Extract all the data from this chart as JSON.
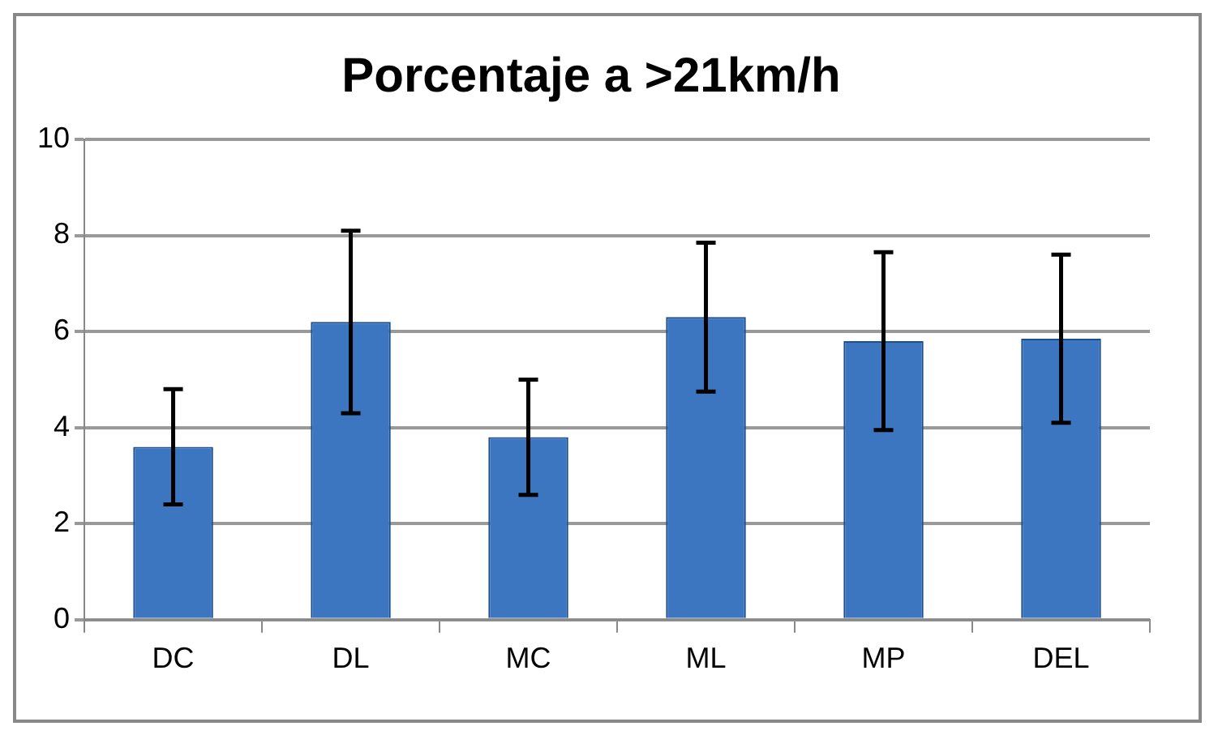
{
  "chart_data": {
    "type": "bar",
    "title": "Porcentaje a >21km/h",
    "categories": [
      "DC",
      "DL",
      "MC",
      "ML",
      "MP",
      "DEL"
    ],
    "values": [
      3.6,
      6.2,
      3.8,
      6.3,
      5.8,
      5.85
    ],
    "errors": [
      1.2,
      1.9,
      1.2,
      1.55,
      1.85,
      1.75
    ],
    "color": "#3c76c0",
    "ylim": [
      0,
      10
    ],
    "yticks": [
      0,
      2,
      4,
      6,
      8,
      10
    ],
    "grid": "y",
    "legend": false
  }
}
